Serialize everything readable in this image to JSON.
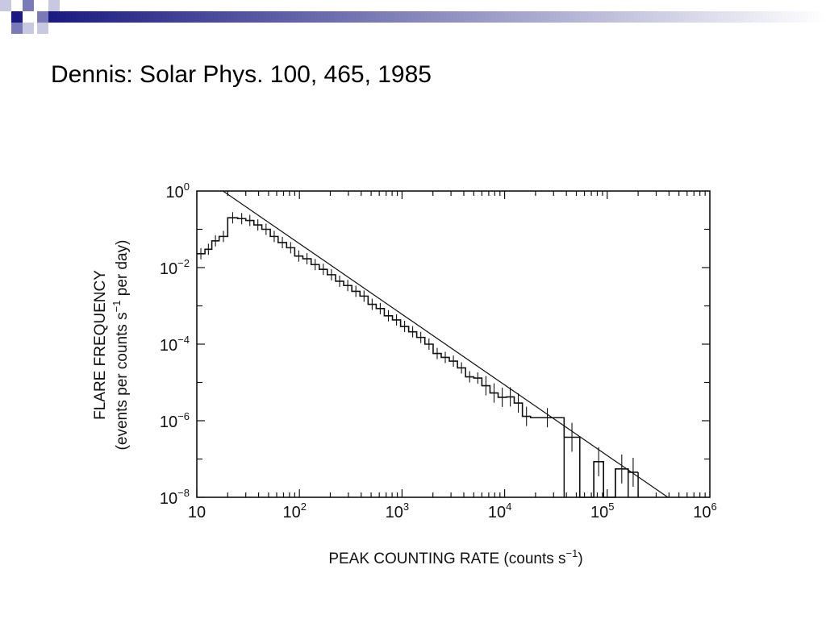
{
  "slide": {
    "title": "Dennis: Solar Phys. 100, 465, 1985",
    "colors": {
      "accent_dark": "#1a1a80",
      "accent_mid": "#7a7ab8",
      "accent_light": "#c8c8e0"
    }
  },
  "chart_data": {
    "type": "line",
    "xlabel": "PEAK COUNTING RATE (counts s",
    "xlabel_sup": "−1",
    "xlabel_tail": ")",
    "ylabel_line1": "FLARE FREQUENCY",
    "ylabel_line2_a": "(events per counts s",
    "ylabel_line2_sup": "−1",
    "ylabel_line2_b": " per day)",
    "xscale": "log",
    "yscale": "log",
    "xlim": [
      10,
      1000000
    ],
    "ylim": [
      1e-08,
      1
    ],
    "x_tick_labels": [
      {
        "value": 10,
        "base": "10",
        "sup": ""
      },
      {
        "value": 100,
        "base": "10",
        "sup": "2"
      },
      {
        "value": 1000,
        "base": "10",
        "sup": "3"
      },
      {
        "value": 10000,
        "base": "10",
        "sup": "4"
      },
      {
        "value": 100000,
        "base": "10",
        "sup": "5"
      },
      {
        "value": 1000000,
        "base": "10",
        "sup": "6"
      }
    ],
    "y_tick_labels": [
      {
        "value": 1,
        "base": "10",
        "sup": "0"
      },
      {
        "value": 0.01,
        "base": "10",
        "sup": "−2"
      },
      {
        "value": 0.0001,
        "base": "10",
        "sup": "−4"
      },
      {
        "value": 1e-06,
        "base": "10",
        "sup": "−6"
      },
      {
        "value": 1e-08,
        "base": "10",
        "sup": "−8"
      }
    ],
    "grid": false,
    "legend": "none",
    "series": [
      {
        "type": "step-histogram",
        "x_edges": [
          10,
          12,
          14,
          16.5,
          20,
          25,
          30,
          36,
          43,
          52,
          62,
          75,
          90,
          108,
          130,
          156,
          187,
          225,
          270,
          324,
          389,
          467,
          560,
          672,
          807,
          968,
          1160,
          1390,
          1670,
          2010,
          2410,
          2890,
          3470,
          4160,
          5000,
          6000,
          7200,
          8640,
          10400,
          12400,
          14900,
          17900,
          38000,
          54000,
          74000,
          92000,
          120000,
          160000,
          200000
        ],
        "y": [
          0.023,
          0.03,
          0.05,
          0.065,
          0.2,
          0.19,
          0.17,
          0.13,
          0.1,
          0.065,
          0.045,
          0.033,
          0.02,
          0.017,
          0.012,
          0.009,
          0.0065,
          0.0044,
          0.0034,
          0.0024,
          0.0018,
          0.0011,
          0.00085,
          0.00055,
          0.00043,
          0.00029,
          0.00021,
          0.00015,
          0.0001,
          5.7e-05,
          4.5e-05,
          3.6e-05,
          2.4e-05,
          1.4e-05,
          1.3e-05,
          8.2e-06,
          5.3e-06,
          4.1e-06,
          4.2e-06,
          2.9e-06,
          1.3e-06,
          1.2e-06,
          3.7e-07,
          1e-08,
          8.5e-08,
          1e-08,
          5.5e-08,
          4.5e-08
        ]
      },
      {
        "type": "fit-line",
        "x": [
          18,
          390000
        ],
        "y": [
          1,
          1e-08
        ]
      }
    ]
  }
}
